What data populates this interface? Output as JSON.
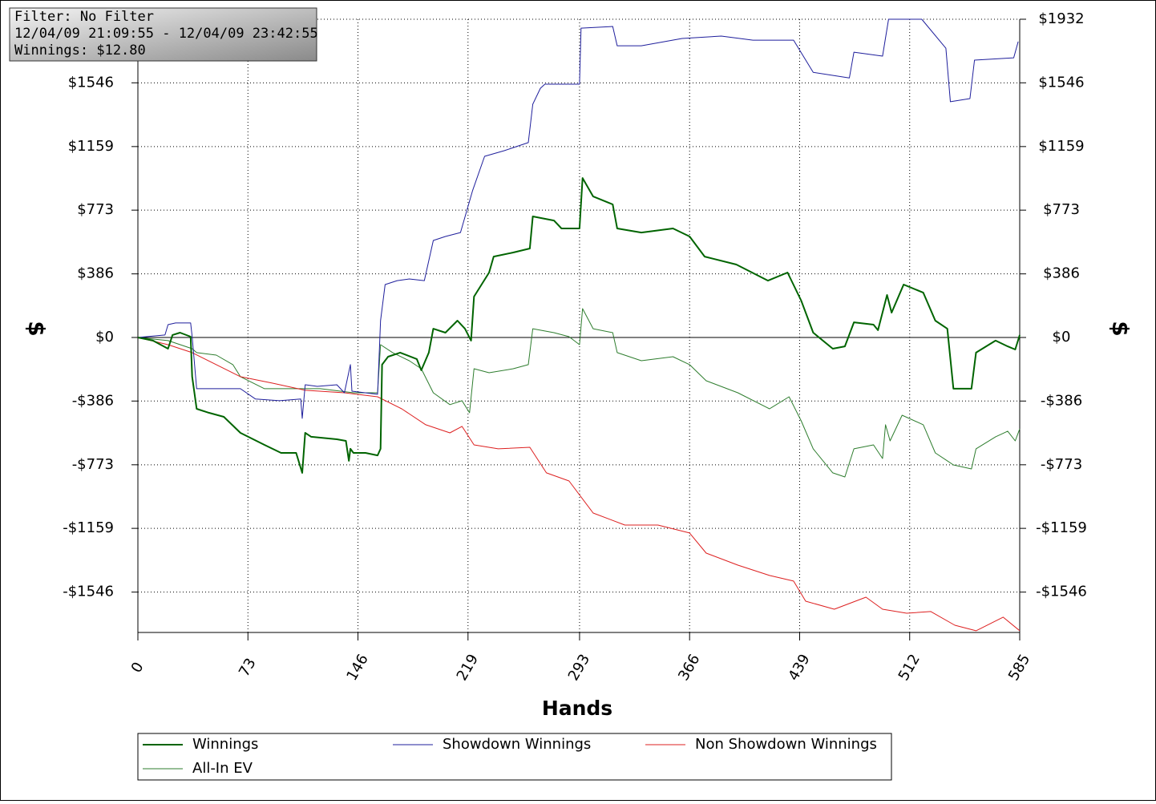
{
  "info": {
    "lines": [
      "Filter: No Filter",
      "12/04/09 21:09:55 - 12/04/09 23:42:55",
      "Winnings: $12.80"
    ]
  },
  "chart_data": {
    "type": "line",
    "xlabel": "Hands",
    "ylabel": "$",
    "y2label": "$",
    "xlim": [
      0,
      585
    ],
    "xticks": [
      0,
      73,
      146,
      219,
      293,
      366,
      439,
      512,
      585
    ],
    "ylim": [
      -1791,
      1932
    ],
    "yticks": [
      {
        "value": 1932,
        "label": "$1932"
      },
      {
        "value": 1546,
        "label": "$1546"
      },
      {
        "value": 1159,
        "label": "$1159"
      },
      {
        "value": 773,
        "label": "$773"
      },
      {
        "value": 386,
        "label": "$386"
      },
      {
        "value": 0,
        "label": "$0"
      },
      {
        "value": -386,
        "label": "-$386"
      },
      {
        "value": -773,
        "label": "-$773"
      },
      {
        "value": -1159,
        "label": "-$1159"
      },
      {
        "value": -1546,
        "label": "-$1546"
      }
    ],
    "grid": true,
    "legend": "bottom",
    "series": [
      {
        "name": "Winnings",
        "color": "#006400",
        "x": [
          0,
          10,
          20,
          23,
          28,
          35,
          36,
          39,
          47,
          57,
          68,
          84,
          95,
          105,
          109,
          111,
          115,
          132,
          138,
          140,
          141,
          143,
          151,
          159,
          161,
          162,
          166,
          174,
          185,
          188,
          193,
          196,
          204,
          212,
          217,
          221,
          223,
          233,
          236,
          249,
          260,
          262,
          276,
          281,
          293,
          295,
          302,
          315,
          318,
          334,
          355,
          366,
          376,
          397,
          418,
          431,
          440,
          448,
          461,
          469,
          475,
          488,
          491,
          497,
          500,
          508,
          521,
          529,
          537,
          541,
          553,
          556,
          569,
          577,
          582,
          585
        ],
        "values": [
          0,
          -19,
          -68,
          15,
          29,
          5,
          -238,
          -433,
          -457,
          -482,
          -579,
          -652,
          -701,
          -701,
          -822,
          -579,
          -603,
          -618,
          -628,
          -749,
          -676,
          -701,
          -701,
          -716,
          -676,
          -165,
          -117,
          -92,
          -131,
          -199,
          -92,
          53,
          29,
          102,
          53,
          -19,
          248,
          394,
          491,
          516,
          540,
          735,
          710,
          662,
          662,
          968,
          856,
          808,
          662,
          637,
          662,
          613,
          491,
          443,
          345,
          394,
          224,
          29,
          -68,
          -54,
          92,
          78,
          44,
          258,
          151,
          321,
          272,
          102,
          53,
          -311,
          -311,
          -92,
          -19,
          -54,
          -73,
          15
        ]
      },
      {
        "name": "Showdown Winnings",
        "color": "#1f1f9c",
        "x": [
          0,
          18,
          20,
          25,
          35,
          36,
          39,
          52,
          68,
          78,
          94,
          108,
          109,
          111,
          119,
          132,
          137,
          141,
          142,
          159,
          161,
          164,
          172,
          180,
          190,
          196,
          204,
          214,
          222,
          230,
          243,
          259,
          262,
          267,
          270,
          293,
          294,
          315,
          318,
          334,
          361,
          387,
          408,
          435,
          448,
          472,
          475,
          494,
          498,
          520,
          536,
          539,
          552,
          555,
          581,
          584
        ],
        "values": [
          0,
          15,
          78,
          88,
          88,
          5,
          -311,
          -311,
          -311,
          -374,
          -384,
          -374,
          -491,
          -287,
          -297,
          -287,
          -336,
          -165,
          -326,
          -345,
          102,
          321,
          345,
          355,
          345,
          589,
          613,
          637,
          890,
          1100,
          1134,
          1183,
          1416,
          1513,
          1538,
          1538,
          1878,
          1888,
          1771,
          1771,
          1815,
          1830,
          1805,
          1805,
          1610,
          1576,
          1732,
          1708,
          1932,
          1932,
          1756,
          1431,
          1450,
          1684,
          1698,
          1796
        ]
      },
      {
        "name": "Non Showdown Winnings",
        "color": "#dd2020",
        "x": [
          0,
          20,
          36,
          52,
          68,
          89,
          111,
          137,
          159,
          175,
          191,
          207,
          215,
          223,
          239,
          260,
          271,
          286,
          302,
          323,
          345,
          366,
          377,
          398,
          419,
          435,
          443,
          462,
          483,
          494,
          510,
          526,
          542,
          556,
          574,
          585
        ],
        "values": [
          0,
          -44,
          -92,
          -165,
          -238,
          -277,
          -321,
          -336,
          -360,
          -433,
          -530,
          -579,
          -540,
          -652,
          -676,
          -667,
          -822,
          -871,
          -1066,
          -1139,
          -1139,
          -1187,
          -1309,
          -1382,
          -1445,
          -1479,
          -1601,
          -1650,
          -1577,
          -1650,
          -1674,
          -1664,
          -1747,
          -1781,
          -1698,
          -1781
        ]
      },
      {
        "name": "All-In EV",
        "color": "#2e7d2e",
        "x": [
          0,
          20,
          36,
          39,
          52,
          63,
          68,
          84,
          105,
          121,
          143,
          159,
          161,
          169,
          180,
          188,
          196,
          207,
          215,
          220,
          223,
          233,
          249,
          259,
          262,
          276,
          286,
          293,
          295,
          302,
          315,
          318,
          334,
          355,
          366,
          377,
          398,
          419,
          432,
          440,
          448,
          461,
          469,
          475,
          488,
          494,
          496,
          499,
          507,
          521,
          529,
          537,
          541,
          553,
          556,
          569,
          577,
          582,
          585
        ],
        "values": [
          0,
          -19,
          -68,
          -92,
          -107,
          -165,
          -238,
          -311,
          -311,
          -311,
          -336,
          -336,
          -44,
          -92,
          -141,
          -190,
          -336,
          -408,
          -384,
          -457,
          -190,
          -214,
          -190,
          -165,
          53,
          29,
          5,
          -44,
          175,
          53,
          29,
          -92,
          -141,
          -117,
          -165,
          -263,
          -336,
          -433,
          -360,
          -506,
          -676,
          -822,
          -847,
          -676,
          -652,
          -735,
          -530,
          -628,
          -472,
          -530,
          -701,
          -749,
          -774,
          -798,
          -676,
          -603,
          -569,
          -628,
          -555
        ]
      }
    ]
  }
}
